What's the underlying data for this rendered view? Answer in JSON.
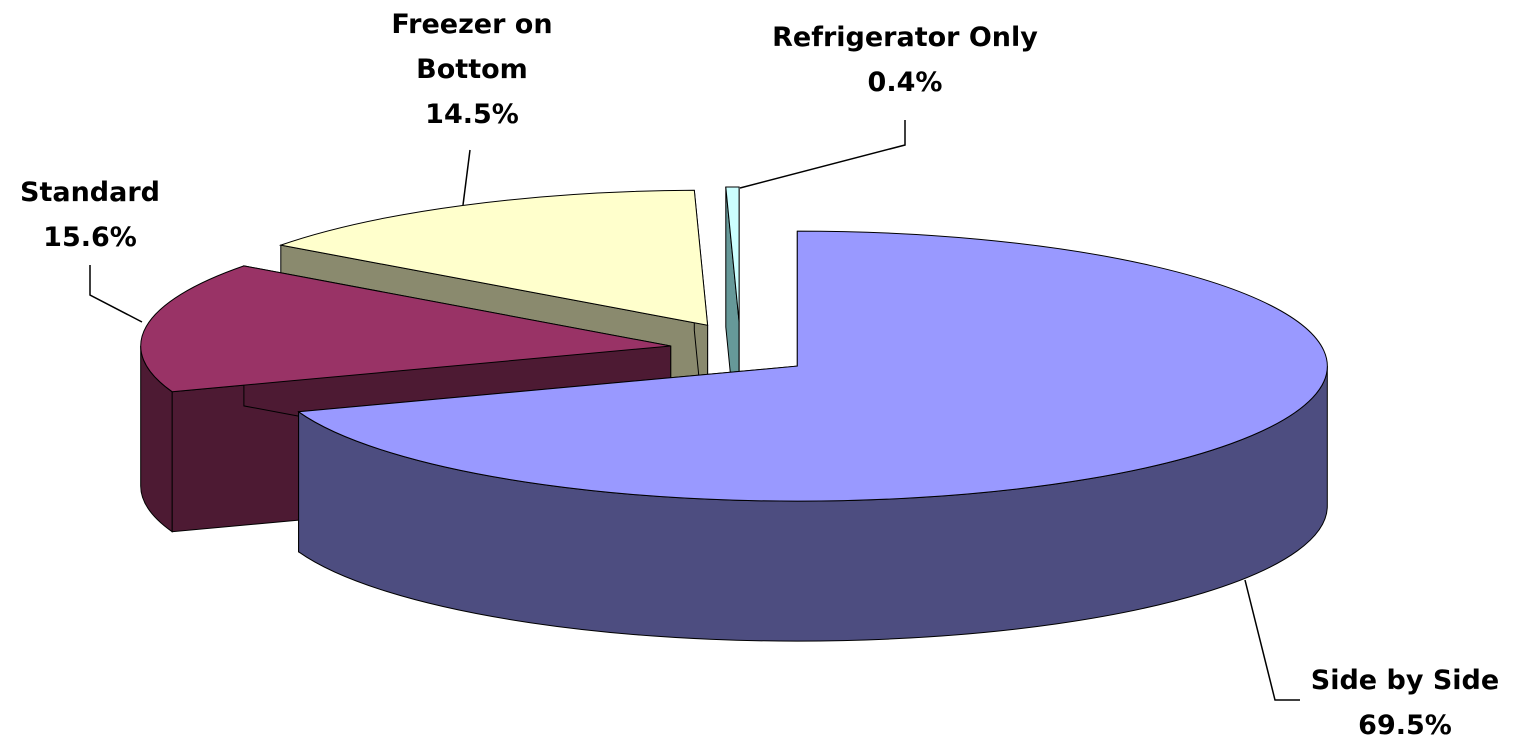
{
  "chart_data": {
    "type": "pie3d",
    "categories": [
      "Side by Side",
      "Standard",
      "Freezer on Bottom",
      "Refrigerator Only"
    ],
    "values": [
      69.5,
      15.6,
      14.5,
      0.4
    ],
    "value_labels": [
      "69.5%",
      "15.6%",
      "14.5%",
      "0.4%"
    ],
    "colors": [
      "#9999ff",
      "#993366",
      "#ffffcc",
      "#ccffff"
    ],
    "side_colors": [
      "#4d4d80",
      "#4d1a33",
      "#8a8a6e",
      "#669999"
    ]
  }
}
